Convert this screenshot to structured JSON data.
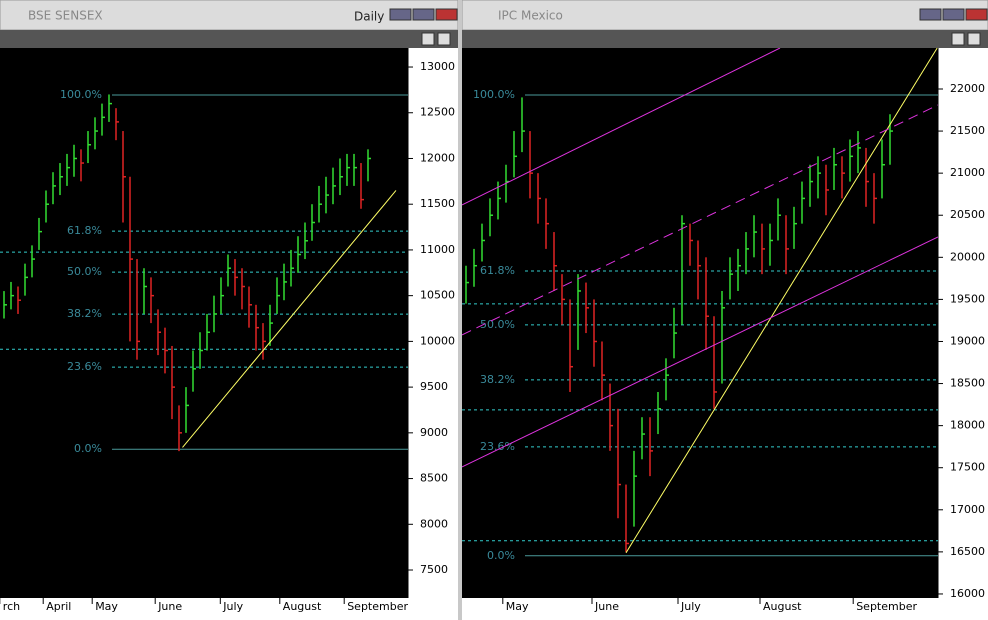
{
  "windows": [
    {
      "title": "BSE   SENSEX",
      "interval": "Daily",
      "ylim": [
        7194,
        13208
      ],
      "yticks": [
        7500,
        8000,
        8500,
        9000,
        9500,
        10000,
        10500,
        11000,
        11500,
        12000,
        12500,
        13000
      ],
      "months": [
        {
          "label": "rch",
          "bar": -0.6
        },
        {
          "label": "April",
          "bar": 5.6
        },
        {
          "label": "May",
          "bar": 12.6
        },
        {
          "label": "June",
          "bar": 21.6
        },
        {
          "label": "July",
          "bar": 30.9
        },
        {
          "label": "August",
          "bar": 39.4
        },
        {
          "label": "September",
          "bar": 48.6
        }
      ],
      "closes": [
        10400,
        10500,
        10450,
        10700,
        10900,
        11200,
        11500,
        11700,
        11800,
        11900,
        12000,
        11950,
        12150,
        12300,
        12450,
        12600,
        12400,
        11800,
        10900,
        10000,
        10600,
        10500,
        10100,
        9900,
        9500,
        9000,
        9300,
        9700,
        9900,
        10100,
        10300,
        10500,
        10800,
        10700,
        10600,
        10400,
        10150,
        10000,
        10200,
        10500,
        10650,
        10800,
        10950,
        11100,
        11300,
        11500,
        11600,
        11700,
        11800,
        11900,
        11900,
        11550,
        12000
      ],
      "highs": [
        10550,
        10650,
        10600,
        10850,
        11050,
        11350,
        11650,
        11850,
        11950,
        12050,
        12150,
        12100,
        12300,
        12450,
        12600,
        12700,
        12550,
        12300,
        11800,
        10900,
        10800,
        10700,
        10350,
        10150,
        9950,
        9300,
        9500,
        9900,
        10100,
        10300,
        10500,
        10700,
        10950,
        10900,
        10800,
        10600,
        10400,
        10200,
        10400,
        10700,
        10850,
        11000,
        11150,
        11300,
        11500,
        11700,
        11800,
        11900,
        12000,
        12050,
        12050,
        11950,
        12100
      ],
      "lows": [
        10250,
        10350,
        10300,
        10500,
        10700,
        11000,
        11300,
        11500,
        11600,
        11700,
        11800,
        11750,
        11950,
        12100,
        12250,
        12400,
        12200,
        11300,
        10000,
        9800,
        10300,
        10200,
        9850,
        9650,
        9150,
        8800,
        9000,
        9450,
        9700,
        9900,
        10100,
        10300,
        10600,
        10500,
        10350,
        10150,
        9900,
        9800,
        9950,
        10300,
        10450,
        10600,
        10750,
        10900,
        11100,
        11300,
        11400,
        11500,
        11600,
        11700,
        11700,
        11450,
        11750
      ],
      "fib": [
        {
          "label": "100.0%",
          "value": 12694
        },
        {
          "label": "61.8%",
          "value": 11206
        },
        {
          "label": "50.0%",
          "value": 10757
        },
        {
          "label": "38.2%",
          "value": 10298
        },
        {
          "label": "23.6%",
          "value": 9718
        },
        {
          "label": "0.0%",
          "value": 8821
        }
      ],
      "levels": [
        10976,
        9914
      ],
      "trendlines": [
        {
          "x": [
            25.5,
            56
          ],
          "y": [
            8840,
            11650
          ],
          "color": "#ffff66",
          "dashed": false
        }
      ]
    },
    {
      "title": "IPC Mexico",
      "ylim": [
        15952,
        22487
      ],
      "yticks": [
        16000,
        16500,
        17000,
        17500,
        18000,
        18500,
        19000,
        19500,
        20000,
        20500,
        21000,
        21500,
        22000
      ],
      "months": [
        {
          "label": "May",
          "bar": 4.6
        },
        {
          "label": "June",
          "bar": 15.75
        },
        {
          "label": "July",
          "bar": 26.5
        },
        {
          "label": "August",
          "bar": 36.75
        },
        {
          "label": "September",
          "bar": 48.4
        }
      ],
      "closes": [
        19700,
        19900,
        20200,
        20500,
        20700,
        20900,
        21200,
        21500,
        21000,
        20700,
        20400,
        19900,
        19500,
        18700,
        19600,
        19400,
        19000,
        18600,
        18000,
        17300,
        16600,
        17400,
        17900,
        17700,
        18200,
        18600,
        19100,
        20400,
        20200,
        19900,
        19300,
        18400,
        19400,
        19800,
        19900,
        20100,
        20300,
        20100,
        20200,
        20500,
        20100,
        20400,
        20700,
        20900,
        21000,
        20800,
        21100,
        21000,
        21200,
        21300,
        20900,
        20700,
        21100,
        21500
      ],
      "highs": [
        19900,
        20100,
        20400,
        20700,
        20900,
        21100,
        21500,
        21900,
        21500,
        21000,
        20700,
        20300,
        19800,
        19500,
        19800,
        19700,
        19500,
        19000,
        18500,
        18200,
        17300,
        17700,
        18100,
        18100,
        18400,
        18800,
        19400,
        20500,
        20400,
        20200,
        20000,
        19300,
        19600,
        20000,
        20100,
        20300,
        20500,
        20400,
        20400,
        20700,
        20500,
        20600,
        20900,
        21100,
        21200,
        21100,
        21300,
        21200,
        21400,
        21500,
        21300,
        21000,
        21400,
        21700
      ],
      "lows": [
        19450,
        19650,
        19950,
        20250,
        20450,
        20650,
        20950,
        21250,
        20700,
        20400,
        20100,
        19600,
        19200,
        18400,
        18900,
        19100,
        18700,
        18300,
        17700,
        16900,
        16500,
        16800,
        17600,
        17400,
        17900,
        18300,
        18800,
        19200,
        19900,
        19500,
        18900,
        18200,
        18500,
        19500,
        19600,
        19800,
        20000,
        19800,
        19900,
        20200,
        19800,
        20100,
        20400,
        20600,
        20700,
        20500,
        20800,
        20700,
        20900,
        21000,
        20600,
        20400,
        20700,
        21100
      ],
      "fib": [
        {
          "label": "100.0%",
          "value": 21929
        },
        {
          "label": "61.8%",
          "value": 19838
        },
        {
          "label": "50.0%",
          "value": 19197
        },
        {
          "label": "38.2%",
          "value": 18544
        },
        {
          "label": "23.6%",
          "value": 17748
        },
        {
          "label": "0.0%",
          "value": 16454
        }
      ],
      "levels": [
        19447,
        18188,
        16632
      ],
      "trendlines": [
        {
          "x": [
            20,
            58.9
          ],
          "y": [
            16489,
            22487
          ],
          "color": "#ffff66",
          "dashed": false
        },
        {
          "x": [
            -0.5,
            39.25
          ],
          "y": [
            20622,
            22487
          ],
          "color": "#dd33dd",
          "dashed": false
        },
        {
          "x": [
            -0.5,
            59
          ],
          "y": [
            19078,
            21810
          ],
          "color": "#dd33dd",
          "dashed": true
        },
        {
          "x": [
            -0.5,
            59
          ],
          "y": [
            17510,
            20242
          ],
          "color": "#dd33dd",
          "dashed": false
        }
      ]
    }
  ]
}
